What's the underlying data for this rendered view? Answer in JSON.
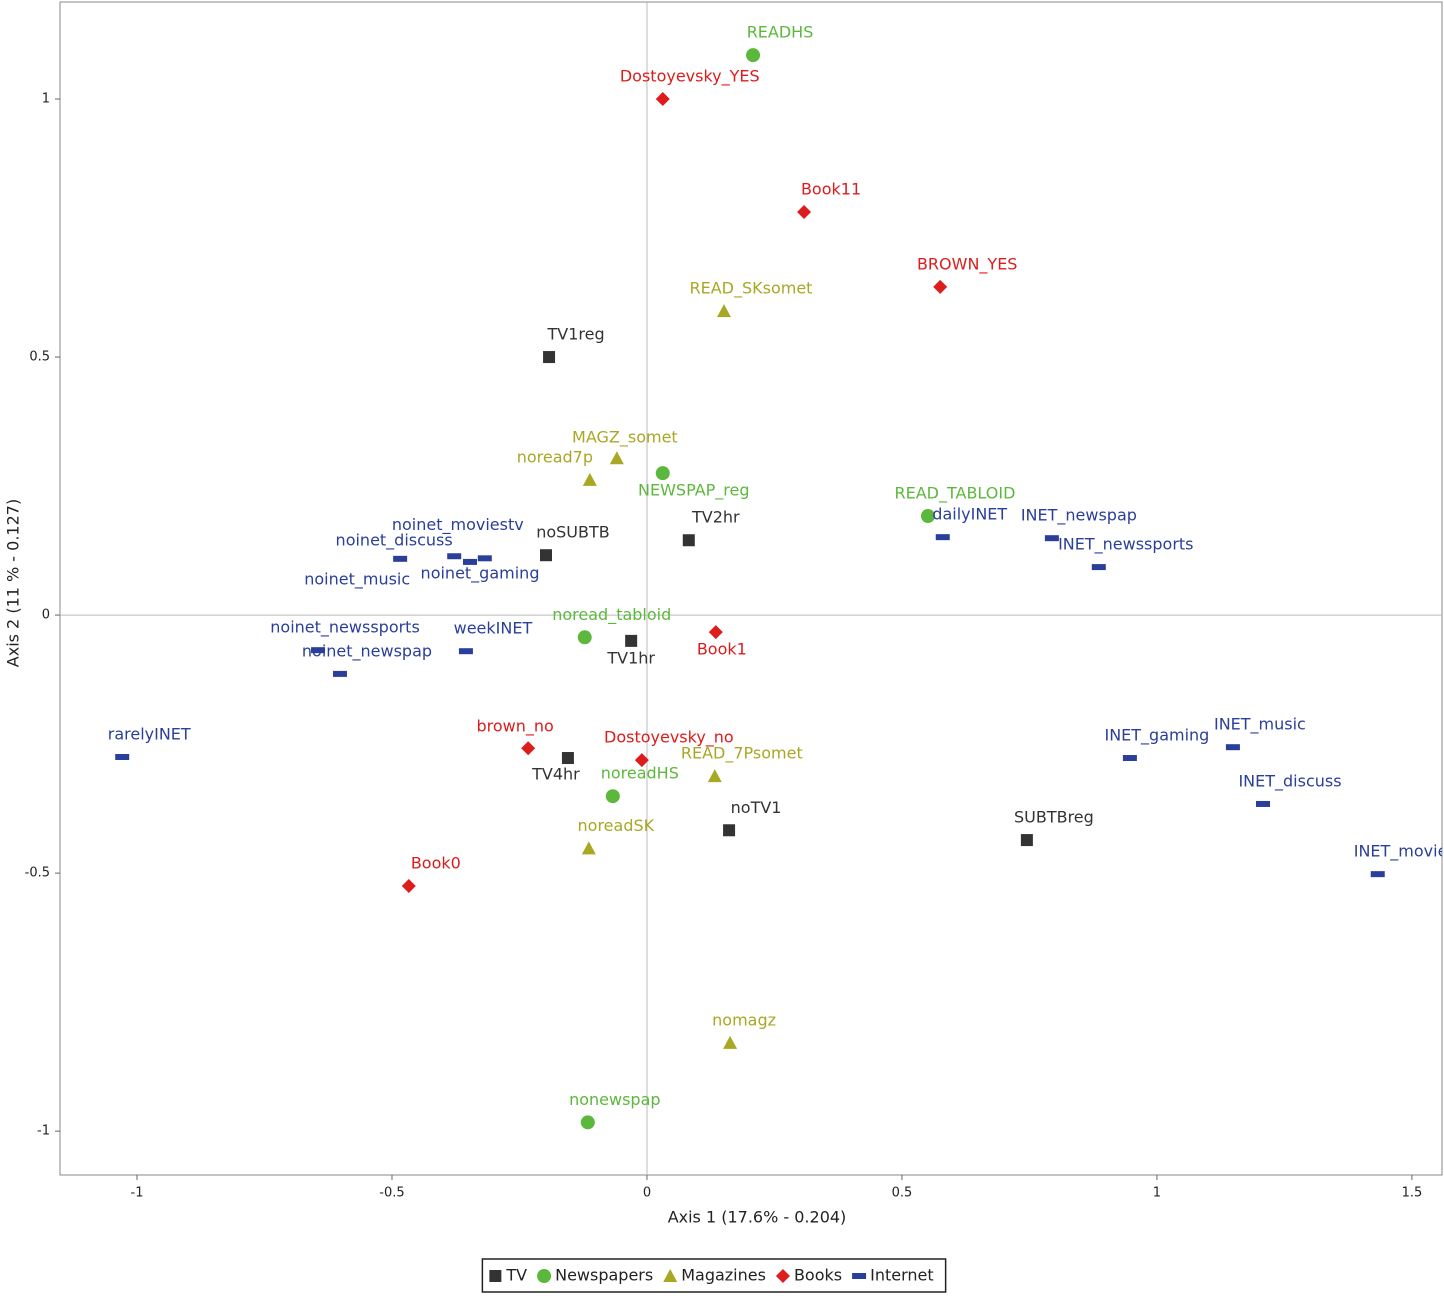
{
  "chart_data": {
    "type": "scatter",
    "x_label": "Axis 1 (17.6% - 0.204)",
    "y_label": "Axis 2 (11 % - 0.127)",
    "xlim": [
      -1.151,
      1.559
    ],
    "ylim": [
      -1.085,
      1.188
    ],
    "xticks": [
      -1,
      -0.5,
      0,
      0.5,
      1,
      1.5
    ],
    "yticks": [
      -1,
      -0.5,
      0,
      0.5,
      1
    ],
    "zero_lines": true,
    "legend": "bottom",
    "series": [
      {
        "name": "TV",
        "color": "#333333",
        "marker": "square",
        "labels": [
          "TV1reg",
          "noSUBTB",
          "TV2hr",
          "TV1hr",
          "TV4hr",
          "noTV1",
          "SUBTBreg"
        ],
        "x": [
          -0.192,
          -0.198,
          0.082,
          -0.031,
          -0.155,
          0.161,
          0.745
        ],
        "y": [
          0.5,
          0.116,
          0.145,
          -0.05,
          -0.277,
          -0.417,
          -0.436
        ]
      },
      {
        "name": "Newspapers",
        "color": "#5cb83c",
        "marker": "circle",
        "labels": [
          "READHS",
          "NEWSPAP_reg",
          "READ_TABLOID",
          "noread_tabloid",
          "noreadHS",
          "nonewspap"
        ],
        "x": [
          0.208,
          0.031,
          0.551,
          -0.122,
          -0.067,
          -0.116
        ],
        "y": [
          1.085,
          0.275,
          0.192,
          -0.043,
          -0.351,
          -0.983
        ]
      },
      {
        "name": "Magazines",
        "color": "#a8a825",
        "marker": "triangle",
        "labels": [
          "READ_SKsomet",
          "MAGZ_somet",
          "noread7p",
          "READ_7Psomet",
          "noreadSK",
          "nomagz"
        ],
        "x": [
          0.151,
          -0.059,
          -0.112,
          0.133,
          -0.114,
          0.163
        ],
        "y": [
          0.589,
          0.304,
          0.262,
          -0.312,
          -0.452,
          -0.829
        ]
      },
      {
        "name": "Books",
        "color": "#dd1c1c",
        "marker": "diamond",
        "labels": [
          "Dostoyevsky_YES",
          "Book11",
          "BROWN_YES",
          "Book1",
          "brown_no",
          "Dostoyevsky_no",
          "Book0"
        ],
        "x": [
          0.031,
          0.308,
          0.575,
          0.135,
          -0.233,
          -0.01,
          -0.467
        ],
        "y": [
          1.0,
          0.781,
          0.636,
          -0.033,
          -0.258,
          -0.281,
          -0.525
        ]
      },
      {
        "name": "Internet",
        "color": "#2a3f9a",
        "marker": "dash",
        "labels": [
          "dailyINET",
          "INET_newspap",
          "INET_newssports",
          "noinet_discuss",
          "noinet_music",
          "noinet_moviestv",
          "noinet_gaming",
          "noinet_newssports",
          "noinet_newspap",
          "weekINET",
          "rarelyINET",
          "INET_gaming",
          "INET_music",
          "INET_discuss",
          "INET_movies"
        ],
        "x": [
          0.58,
          0.794,
          0.886,
          -0.484,
          -0.378,
          -0.318,
          -0.347,
          -0.645,
          -0.602,
          -0.355,
          -1.029,
          0.947,
          1.149,
          1.208,
          1.433
        ],
        "y": [
          0.151,
          0.149,
          0.093,
          0.109,
          0.114,
          0.11,
          0.103,
          -0.068,
          -0.114,
          -0.07,
          -0.275,
          -0.277,
          -0.256,
          -0.366,
          -0.502
        ]
      }
    ]
  }
}
